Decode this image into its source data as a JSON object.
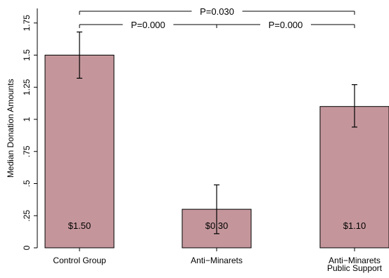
{
  "chart_data": {
    "type": "bar",
    "title": "",
    "xlabel": "",
    "ylabel": "Median Donation Amounts",
    "ylim": [
      0,
      1.85
    ],
    "yticks": [
      {
        "value": 0,
        "label": "0"
      },
      {
        "value": 0.25,
        "label": ".25"
      },
      {
        "value": 0.5,
        "label": ".5"
      },
      {
        "value": 0.75,
        "label": ".75"
      },
      {
        "value": 1,
        "label": "1"
      },
      {
        "value": 1.25,
        "label": "1.25"
      },
      {
        "value": 1.5,
        "label": "1.5"
      },
      {
        "value": 1.75,
        "label": "1.75"
      }
    ],
    "categories": [
      {
        "lines": [
          "Control Group"
        ]
      },
      {
        "lines": [
          "Anti−Minarets"
        ]
      },
      {
        "lines": [
          "Anti−Minarets",
          "Public Support"
        ]
      }
    ],
    "values": [
      1.5,
      0.3,
      1.1
    ],
    "error_low": [
      1.32,
      0.11,
      0.94
    ],
    "error_high": [
      1.68,
      0.49,
      1.27
    ],
    "data_labels": [
      "$1.50",
      "$0.30",
      "$1.10"
    ],
    "comparisons": [
      {
        "from": 0,
        "to": 2,
        "label": "P=0.030",
        "level": 2
      },
      {
        "from": 0,
        "to": 1,
        "label": "P=0.000",
        "level": 1
      },
      {
        "from": 1,
        "to": 2,
        "label": "P=0.000",
        "level": 1
      }
    ],
    "colors": {
      "bar": "#c4969b",
      "outline": "#000000"
    },
    "grid": false
  }
}
